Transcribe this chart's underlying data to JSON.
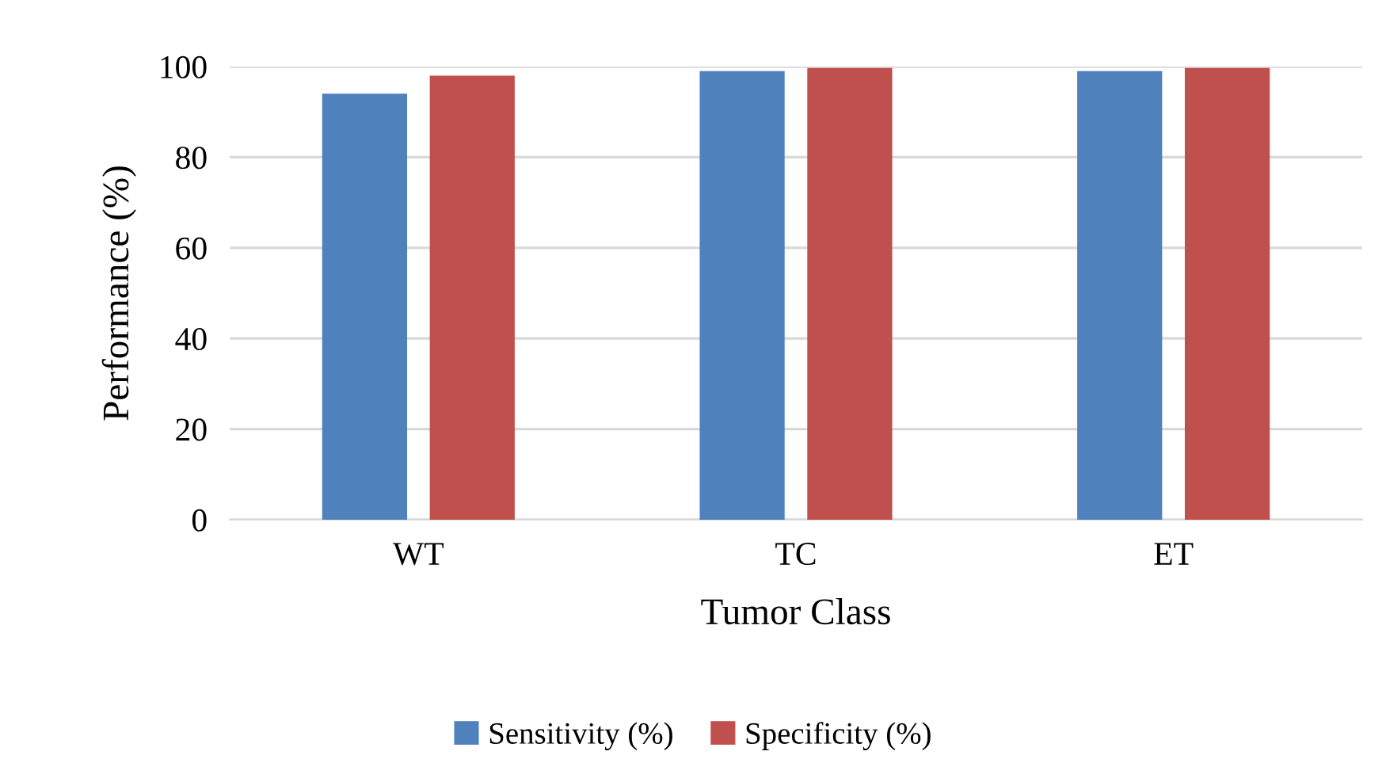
{
  "chart_data": {
    "type": "bar",
    "xlabel": "Tumor Class",
    "ylabel": "Performance (%)",
    "categories": [
      "WT",
      "TC",
      "ET"
    ],
    "series": [
      {
        "name": "Sensitivity (%)",
        "color": "#4f81bd",
        "values": [
          94,
          99,
          99
        ]
      },
      {
        "name": "Specificity (%)",
        "color": "#c0504d",
        "values": [
          98,
          99.7,
          99.7
        ]
      }
    ],
    "ylim": [
      0,
      100
    ],
    "yticks": [
      0,
      20,
      40,
      60,
      80,
      100
    ],
    "grid": "y",
    "legend": "bottom"
  }
}
